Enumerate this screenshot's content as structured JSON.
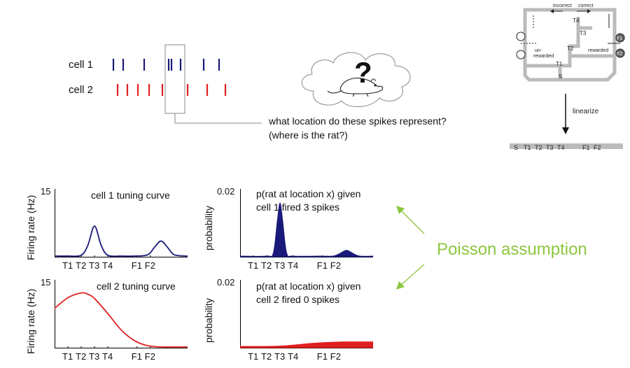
{
  "raster": {
    "cell1_label": "cell 1",
    "cell2_label": "cell 2",
    "cell1_color": "#1a1a7a",
    "cell2_color": "#e02020",
    "cell1_spikes": [
      162,
      176,
      206,
      241,
      245,
      258,
      291,
      313
    ],
    "cell2_spikes": [
      168,
      182,
      197,
      213,
      232,
      268,
      296,
      322
    ]
  },
  "question": {
    "line1": "what location do these spikes represent?",
    "line2": "(where is the rat?)",
    "mark": "?"
  },
  "maze": {
    "incorrect": "incorrect",
    "correct": "correct",
    "T4": "T4",
    "T3": "T3",
    "T2": "T2",
    "T1": "T1",
    "S": "S",
    "F1": "F1",
    "F2": "F2",
    "unrewarded_1": "un-",
    "unrewarded_2": "rewarded",
    "rewarded": "rewarded",
    "linearize": "linearize",
    "linear_labels": [
      "S",
      "T1",
      "T2",
      "T3",
      "T4",
      "F1",
      "F2"
    ]
  },
  "poisson_label": "Poisson assumption",
  "accent_color": "#8dc63f",
  "chart_data": [
    {
      "type": "line",
      "title": "cell 1 tuning curve",
      "ylabel": "Firing rate (Hz)",
      "ytick_max": "15",
      "xtick_labels": [
        "T1",
        "T2",
        "T3",
        "T4",
        "F1",
        "F2"
      ],
      "color": "#1a1a7a",
      "ylim": [
        0,
        15
      ],
      "x": [
        0,
        0.1,
        0.2,
        0.25,
        0.3,
        0.35,
        0.4,
        0.5,
        0.6,
        0.7,
        0.75,
        0.8,
        0.85,
        0.9,
        1
      ],
      "values": [
        0,
        0,
        0.2,
        2.5,
        7,
        2.5,
        0.2,
        0,
        0,
        0.3,
        2,
        3.5,
        2,
        0.3,
        0
      ]
    },
    {
      "type": "area",
      "title": "p(rat at location x) given cell 1 fired 3 spikes",
      "title_line1": "p(rat at location x) given",
      "title_line2": "cell 1 fired 3 spikes",
      "ylabel": "probability",
      "ytick_max": "0.02",
      "xtick_labels": [
        "T1",
        "T2",
        "T3",
        "T4",
        "F1",
        "F2"
      ],
      "color": "#1a1a7a",
      "ylim": [
        0,
        0.02
      ],
      "x": [
        0,
        0.2,
        0.25,
        0.28,
        0.3,
        0.32,
        0.35,
        0.4,
        0.6,
        0.7,
        0.75,
        0.8,
        0.85,
        0.9,
        1
      ],
      "values": [
        0,
        0,
        0.001,
        0.011,
        0.0165,
        0.011,
        0.001,
        0,
        0,
        0,
        0.0008,
        0.0018,
        0.0008,
        0,
        0
      ]
    },
    {
      "type": "line",
      "title": "cell 2 tuning curve",
      "ylabel": "Firing rate (Hz)",
      "ytick_max": "15",
      "xtick_labels": [
        "T1",
        "T2",
        "T3",
        "T4",
        "F1",
        "F2"
      ],
      "color": "#e02020",
      "ylim": [
        0,
        15
      ],
      "x": [
        0,
        0.1,
        0.2,
        0.25,
        0.3,
        0.4,
        0.5,
        0.6,
        0.7,
        0.8,
        0.9,
        1
      ],
      "values": [
        9,
        11.5,
        12.6,
        12.3,
        11.3,
        7.8,
        4,
        1.5,
        0.3,
        0.02,
        0,
        0
      ]
    },
    {
      "type": "area",
      "title": "p(rat at location x) given cell 2 fired 0 spikes",
      "title_line1": "p(rat at location x) given",
      "title_line2": "cell 2 fired 0 spikes",
      "ylabel": "probability",
      "ytick_max": "0.02",
      "xtick_labels": [
        "T1",
        "T2",
        "T3",
        "T4",
        "F1",
        "F2"
      ],
      "color": "#e02020",
      "ylim": [
        0,
        0.02
      ],
      "x": [
        0,
        0.2,
        0.3,
        0.4,
        0.5,
        0.6,
        0.7,
        0.8,
        1
      ],
      "values": [
        0.0002,
        0.0002,
        0.0003,
        0.0006,
        0.001,
        0.0013,
        0.0015,
        0.0016,
        0.0016
      ]
    }
  ]
}
